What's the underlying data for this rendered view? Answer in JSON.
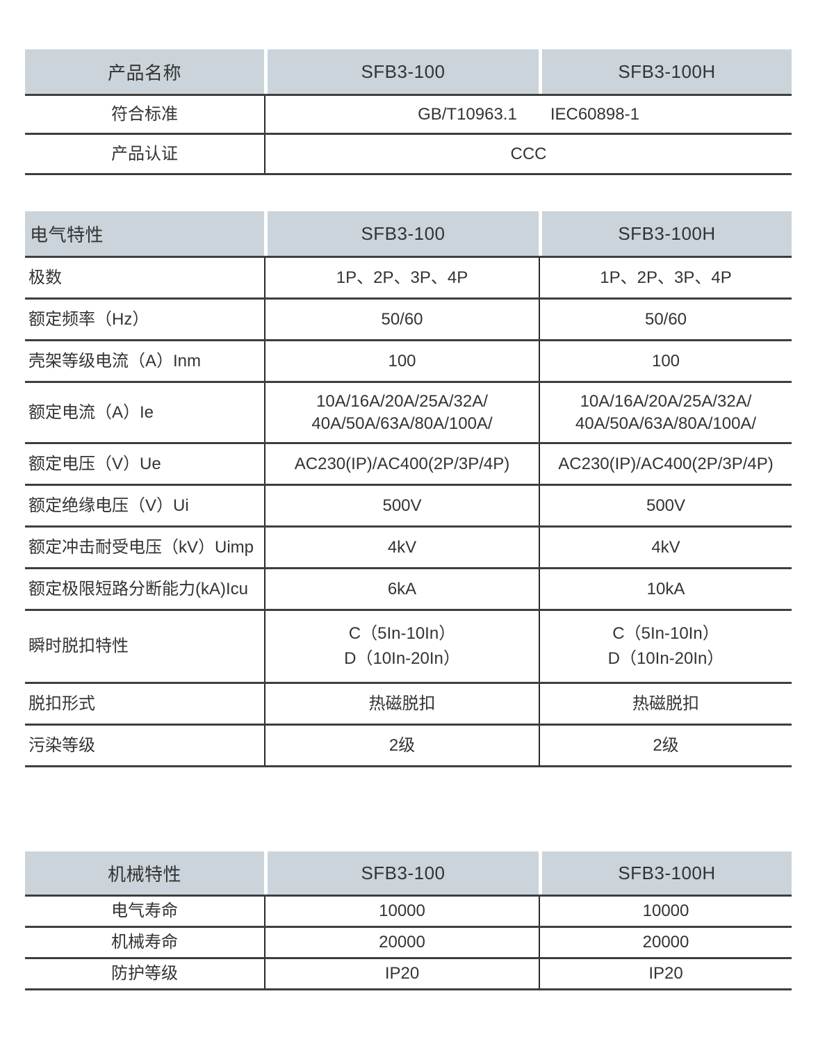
{
  "colors": {
    "header_bg": "#cbd4da",
    "horizontal_line": "#3e3e3e",
    "vertical_line": "#2a2a2a",
    "text": "#333333",
    "page_bg": "#ffffff"
  },
  "product_table": {
    "header": [
      "产品名称",
      "SFB3-100",
      "SFB3-100H"
    ],
    "rows": [
      {
        "label": "符合标准",
        "value_parts": [
          "GB/T10963.1",
          "IEC60898-1"
        ]
      },
      {
        "label": "产品认证",
        "value": "CCC"
      }
    ]
  },
  "electrical_table": {
    "header": [
      "电气特性",
      "SFB3-100",
      "SFB3-100H"
    ],
    "rows": [
      {
        "label": "极数",
        "v1": "1P、2P、3P、4P",
        "v2": "1P、2P、3P、4P"
      },
      {
        "label": "额定频率（Hz）",
        "v1": "50/60",
        "v2": "50/60"
      },
      {
        "label": "壳架等级电流（A）Inm",
        "v1": "100",
        "v2": "100"
      },
      {
        "label": "额定电流（A）Ie",
        "v1": "10A/16A/20A/25A/32A/\n40A/50A/63A/80A/100A/",
        "v2": "10A/16A/20A/25A/32A/\n40A/50A/63A/80A/100A/"
      },
      {
        "label": "额定电压（V）Ue",
        "v1": "AC230(IP)/AC400(2P/3P/4P)",
        "v2": "AC230(IP)/AC400(2P/3P/4P)"
      },
      {
        "label": "额定绝缘电压（V）Ui",
        "v1": "500V",
        "v2": "500V"
      },
      {
        "label": "额定冲击耐受电压（kV）Uimp",
        "v1": "4kV",
        "v2": "4kV"
      },
      {
        "label": "额定极限短路分断能力(kA)Icu",
        "v1": "6kA",
        "v2": "10kA"
      },
      {
        "label": "瞬时脱扣特性",
        "v1": "C（5In-10In）\nD（10In-20In）",
        "v2": "C（5In-10In）\nD（10In-20In）"
      },
      {
        "label": "脱扣形式",
        "v1": "热磁脱扣",
        "v2": "热磁脱扣"
      },
      {
        "label": "污染等级",
        "v1": "2级",
        "v2": "2级"
      }
    ]
  },
  "mechanical_table": {
    "header": [
      "机械特性",
      "SFB3-100",
      "SFB3-100H"
    ],
    "rows": [
      {
        "label": "电气寿命",
        "v1": "10000",
        "v2": "10000"
      },
      {
        "label": "机械寿命",
        "v1": "20000",
        "v2": "20000"
      },
      {
        "label": "防护等级",
        "v1": "IP20",
        "v2": "IP20"
      }
    ]
  }
}
